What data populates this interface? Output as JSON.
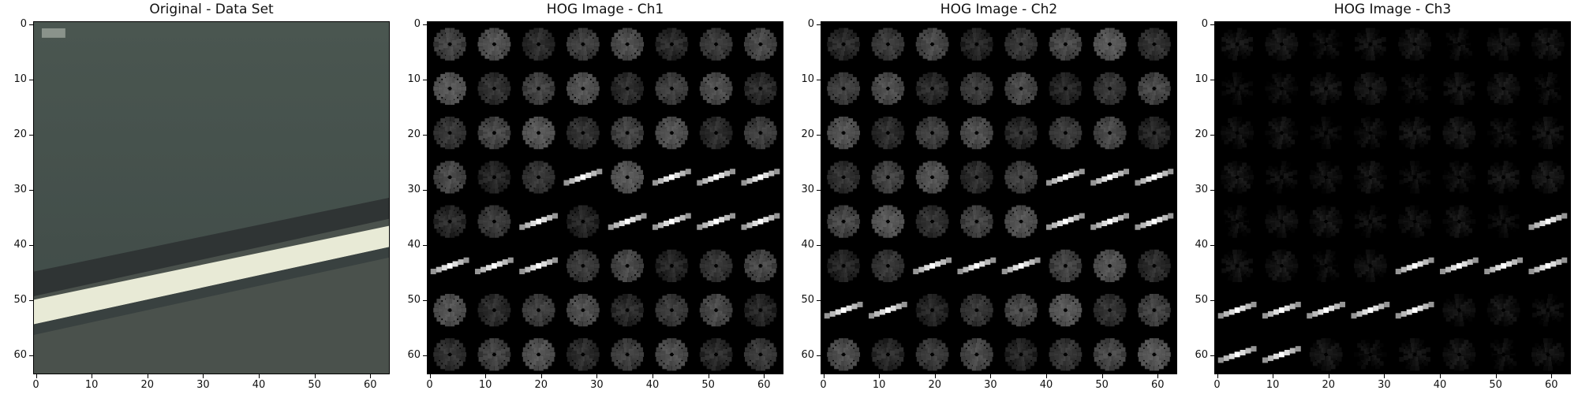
{
  "panels": [
    {
      "id": "original",
      "title": "Original - Data Set",
      "kind": "photo"
    },
    {
      "id": "ch1",
      "title": "HOG Image - Ch1",
      "kind": "hog",
      "line_cells": [
        [
          5,
          0
        ],
        [
          5,
          1
        ],
        [
          5,
          2
        ],
        [
          4,
          2
        ],
        [
          3,
          3
        ],
        [
          4,
          4
        ],
        [
          4,
          5
        ],
        [
          4,
          6
        ],
        [
          4,
          7
        ],
        [
          3,
          5
        ],
        [
          3,
          7
        ],
        [
          3,
          6
        ],
        [
          3,
          7
        ]
      ]
    },
    {
      "id": "ch2",
      "title": "HOG Image - Ch2",
      "kind": "hog",
      "line_cells": [
        [
          6,
          0
        ],
        [
          6,
          1
        ],
        [
          5,
          2
        ],
        [
          5,
          3
        ],
        [
          5,
          4
        ],
        [
          4,
          5
        ],
        [
          4,
          6
        ],
        [
          4,
          7
        ],
        [
          3,
          5
        ],
        [
          3,
          6
        ],
        [
          3,
          7
        ]
      ]
    },
    {
      "id": "ch3",
      "title": "HOG Image - Ch3",
      "kind": "hog",
      "line_cells": [
        [
          7,
          0
        ],
        [
          7,
          1
        ],
        [
          6,
          0
        ],
        [
          6,
          1
        ],
        [
          6,
          2
        ],
        [
          6,
          3
        ],
        [
          6,
          4
        ],
        [
          5,
          4
        ],
        [
          5,
          5
        ],
        [
          5,
          6
        ],
        [
          5,
          7
        ],
        [
          4,
          7
        ]
      ]
    }
  ],
  "axes": {
    "x_ticks": [
      "0",
      "10",
      "20",
      "30",
      "40",
      "50",
      "60"
    ],
    "y_ticks": [
      "0",
      "10",
      "20",
      "30",
      "40",
      "50",
      "60"
    ]
  },
  "colors": {
    "photo_top": "#4a5650",
    "photo_bottom": "#3f4a47",
    "stripe": "#e8ead6",
    "hog_bg": "#000000"
  }
}
